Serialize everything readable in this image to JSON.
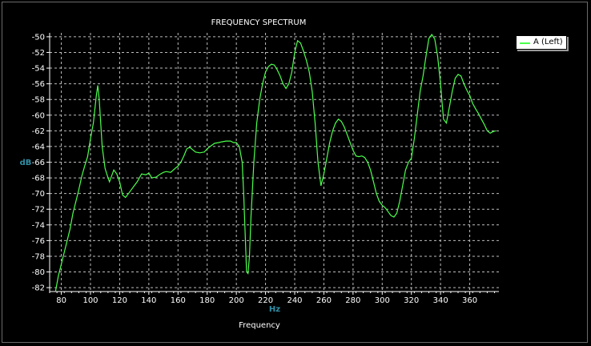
{
  "chart_data": {
    "type": "line",
    "title": "FREQUENCY SPECTRUM",
    "xlabel": "Frequency",
    "x_unit": "Hz",
    "ylabel": "dB",
    "xlim": [
      72,
      380
    ],
    "ylim": [
      -82.5,
      -49.5
    ],
    "x_ticks": [
      80,
      100,
      120,
      140,
      160,
      180,
      200,
      220,
      240,
      260,
      280,
      300,
      320,
      340,
      360
    ],
    "y_ticks": [
      -50,
      -52,
      -54,
      -56,
      -58,
      -60,
      -62,
      -64,
      -66,
      -68,
      -70,
      -72,
      -74,
      -76,
      -78,
      -80,
      -82
    ],
    "grid": true,
    "legend_position": "top-right, outside plot",
    "colors": {
      "background": "#000000",
      "axes": "#ffffff",
      "grid": "#bdbdbd",
      "axis_label_dB_Hz": "#2f8fa6",
      "text": "#ffffff",
      "series": "#4cff4c"
    },
    "series": [
      {
        "name": "A (Left)",
        "x": [
          76,
          78,
          80,
          82,
          84,
          86,
          88,
          90,
          92,
          94,
          96,
          98,
          100,
          102,
          104,
          105,
          106,
          108,
          110,
          112,
          113,
          114,
          116,
          118,
          120,
          122,
          124,
          126,
          128,
          130,
          132,
          135,
          138,
          140,
          142,
          145,
          148,
          150,
          152,
          155,
          158,
          160,
          162,
          164,
          166,
          168,
          170,
          172,
          175,
          178,
          180,
          182,
          185,
          188,
          190,
          193,
          196,
          198,
          200,
          202,
          204,
          205,
          206,
          207,
          208,
          209,
          210,
          212,
          214,
          216,
          218,
          220,
          222,
          224,
          226,
          228,
          230,
          232,
          234,
          236,
          238,
          240,
          242,
          244,
          246,
          248,
          250,
          252,
          254,
          256,
          258,
          260,
          262,
          264,
          266,
          268,
          270,
          272,
          274,
          276,
          278,
          280,
          282,
          284,
          286,
          288,
          290,
          292,
          294,
          296,
          298,
          300,
          302,
          304,
          306,
          308,
          310,
          312,
          314,
          316,
          318,
          320,
          322,
          324,
          326,
          328,
          330,
          332,
          334,
          336,
          338,
          340,
          342,
          344,
          346,
          348,
          350,
          352,
          354,
          356,
          358,
          360,
          362,
          364,
          366,
          368,
          370,
          372,
          374,
          376,
          378
        ],
        "values": [
          -82.5,
          -80.5,
          -79,
          -77.5,
          -76,
          -74.5,
          -72.5,
          -71,
          -69.5,
          -67.8,
          -66.5,
          -65.3,
          -63,
          -61,
          -57.5,
          -56.2,
          -58,
          -64,
          -66.8,
          -68,
          -68.5,
          -68,
          -67,
          -67.5,
          -68.5,
          -70.2,
          -70.5,
          -70,
          -69.5,
          -69,
          -68.5,
          -67.5,
          -67.6,
          -67.4,
          -68,
          -67.9,
          -67.5,
          -67.3,
          -67.2,
          -67.3,
          -66.8,
          -66.5,
          -66,
          -65.2,
          -64.3,
          -64.1,
          -64.4,
          -64.7,
          -64.8,
          -64.7,
          -64.3,
          -64,
          -63.6,
          -63.5,
          -63.4,
          -63.3,
          -63.3,
          -63.5,
          -63.5,
          -64,
          -66,
          -70,
          -75,
          -80,
          -80.2,
          -78,
          -73,
          -66,
          -61,
          -58,
          -56,
          -54.5,
          -53.8,
          -53.5,
          -53.6,
          -54.2,
          -55,
          -56,
          -56.6,
          -56,
          -54.5,
          -52,
          -50.5,
          -50.8,
          -51.8,
          -53,
          -54.5,
          -57,
          -61,
          -66,
          -69,
          -67.5,
          -65.5,
          -63.5,
          -62,
          -61,
          -60.5,
          -60.8,
          -61.5,
          -62.5,
          -63.5,
          -64.5,
          -65.2,
          -65.3,
          -65.2,
          -65.4,
          -66,
          -67,
          -68.5,
          -70,
          -71,
          -71.5,
          -71.8,
          -72.3,
          -72.8,
          -73,
          -72.5,
          -71,
          -69,
          -67,
          -66,
          -65.5,
          -63,
          -60,
          -57,
          -55,
          -52.5,
          -50.2,
          -49.7,
          -50.3,
          -52.5,
          -56,
          -60.5,
          -61,
          -59,
          -57,
          -55.3,
          -54.8,
          -55,
          -56,
          -56.8,
          -57.5,
          -58.5,
          -59.2,
          -59.8,
          -60.5,
          -61.2,
          -62,
          -62.3,
          -62.1,
          -62
        ],
        "color": "#4cff4c"
      }
    ]
  }
}
